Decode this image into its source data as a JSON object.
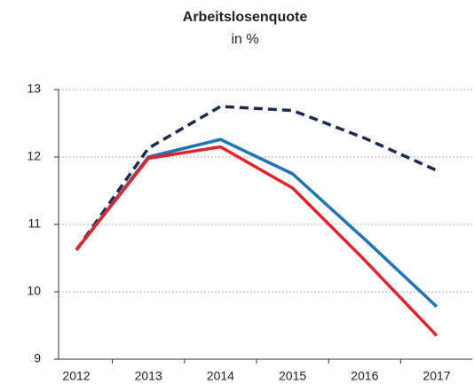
{
  "chart_data": {
    "type": "line",
    "title": "Arbeitslosenquote",
    "subtitle": "in %",
    "categories": [
      "2012",
      "2013",
      "2014",
      "2015",
      "2016",
      "2017"
    ],
    "series": [
      {
        "color": "#1c2b4f",
        "dashed": true,
        "values": [
          10.62,
          12.13,
          12.75,
          12.69,
          12.28,
          11.8
        ]
      },
      {
        "color": "#1f73b7",
        "values": [
          10.62,
          12.0,
          12.26,
          11.75,
          10.78,
          9.78
        ]
      },
      {
        "color": "#e3232c",
        "values": [
          10.62,
          11.98,
          12.15,
          11.54,
          10.47,
          9.35
        ]
      }
    ],
    "ylim": [
      9,
      13
    ],
    "yticks": [
      9,
      10,
      11,
      12,
      13
    ],
    "grid": true
  }
}
